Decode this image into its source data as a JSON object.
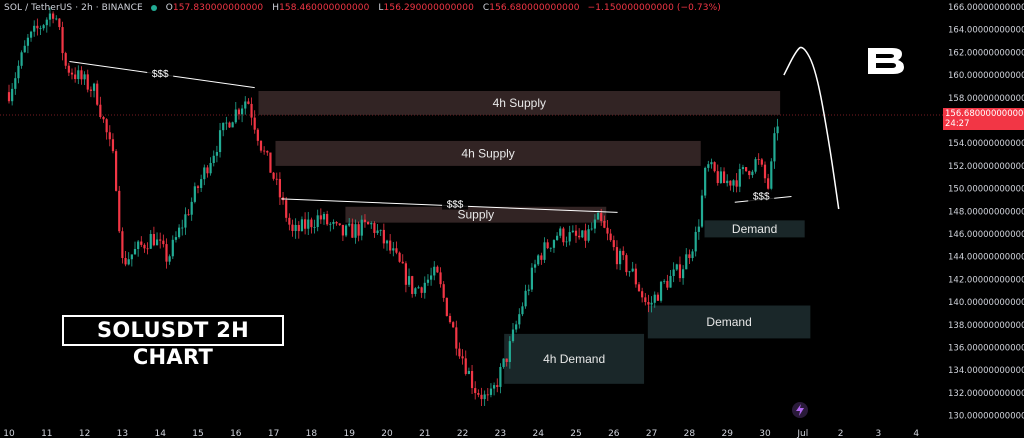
{
  "header": {
    "symbol": "SOL / TetherUS · 2h · BINANCE",
    "o_label": "O",
    "o_value": "157.830000000000",
    "h_label": "H",
    "h_value": "158.460000000000",
    "l_label": "L",
    "l_value": "156.290000000000",
    "c_label": "C",
    "c_value": "156.680000000000",
    "change": "−1.150000000000 (−0.73%)"
  },
  "current_price": {
    "value": "156.680000000000",
    "countdown": "24:27"
  },
  "title_box": "SOLUSDT 2H CHART",
  "colors": {
    "up": "#22ab94",
    "down": "#f23645",
    "supply": "#3b2a2a",
    "demand": "#1d2b2e",
    "background": "#000000"
  },
  "chart_data": {
    "type": "candlestick",
    "y_axis": {
      "ylim": [
        129.5,
        166.5
      ],
      "ticks": [
        166,
        164,
        162,
        160,
        158,
        156,
        154,
        152,
        150,
        148,
        146,
        144,
        142,
        140,
        138,
        136,
        134,
        132,
        130
      ],
      "tick_labels": [
        "166.0000000000000",
        "164.0000000000000",
        "162.0000000000000",
        "160.0000000000000",
        "158.0000000000000",
        "156.0000000000000",
        "154.0000000000000",
        "152.0000000000000",
        "150.0000000000000",
        "148.0000000000000",
        "146.0000000000000",
        "144.0000000000000",
        "142.0000000000000",
        "140.0000000000000",
        "138.0000000000000",
        "136.0000000000000",
        "134.0000000000000",
        "132.0000000000000",
        "130.0000000000000"
      ]
    },
    "x_axis": {
      "ticks": [
        "10",
        "11",
        "12",
        "13",
        "14",
        "15",
        "16",
        "17",
        "18",
        "19",
        "20",
        "21",
        "22",
        "23",
        "24",
        "25",
        "26",
        "27",
        "28",
        "29",
        "30",
        "Jul",
        "2",
        "3",
        "4"
      ]
    },
    "zones": [
      {
        "label": "4h Supply",
        "kind": "supply",
        "y_top": 158.6,
        "y_bottom": 156.5,
        "x_start": 16.6,
        "x_end": 30.4
      },
      {
        "label": "4h Supply",
        "kind": "supply",
        "y_top": 154.2,
        "y_bottom": 152.0,
        "x_start": 17.05,
        "x_end": 28.3
      },
      {
        "label": "Supply",
        "kind": "supply",
        "y_top": 148.4,
        "y_bottom": 147.0,
        "x_start": 18.9,
        "x_end": 25.8
      },
      {
        "label": "Demand",
        "kind": "demand",
        "y_top": 147.2,
        "y_bottom": 145.7,
        "x_start": 28.4,
        "x_end": 31.05
      },
      {
        "label": "Demand",
        "kind": "demand",
        "y_top": 139.7,
        "y_bottom": 136.8,
        "x_start": 26.9,
        "x_end": 31.2
      },
      {
        "label": "4h Demand",
        "kind": "demand",
        "y_top": 137.2,
        "y_bottom": 132.8,
        "x_start": 23.1,
        "x_end": 26.8
      }
    ],
    "liquidity_lines": [
      {
        "label": "$$$",
        "x1": 11.6,
        "y1": 161.2,
        "x2": 16.5,
        "y2": 158.9,
        "label_x": 14.0,
        "label_y": 160.0
      },
      {
        "label": "$$$",
        "x1": 17.2,
        "y1": 149.1,
        "x2": 26.1,
        "y2": 147.9,
        "label_x": 21.8,
        "label_y": 148.5
      },
      {
        "label": "$$$",
        "x1": 29.2,
        "y1": 148.8,
        "x2": 30.7,
        "y2": 149.3,
        "label_x": 29.9,
        "label_y": 149.2
      }
    ],
    "projection": {
      "points": [
        [
          30.5,
          160.0
        ],
        [
          30.8,
          162.0
        ],
        [
          31.0,
          162.7
        ],
        [
          31.35,
          160.5
        ],
        [
          31.7,
          154.0
        ],
        [
          31.95,
          148.2
        ]
      ]
    },
    "anchors": [
      {
        "x": 10,
        "p": 158.5
      },
      {
        "x": 10.5,
        "p": 163.0
      },
      {
        "x": 11.2,
        "p": 165.8
      },
      {
        "x": 11.5,
        "p": 160.8
      },
      {
        "x": 12.3,
        "p": 158.5
      },
      {
        "x": 12.8,
        "p": 152.0
      },
      {
        "x": 13.0,
        "p": 143.5
      },
      {
        "x": 13.8,
        "p": 145.8
      },
      {
        "x": 14.2,
        "p": 143.8
      },
      {
        "x": 14.6,
        "p": 147.0
      },
      {
        "x": 15.3,
        "p": 152.5
      },
      {
        "x": 15.8,
        "p": 156.0
      },
      {
        "x": 16.3,
        "p": 158.0
      },
      {
        "x": 16.7,
        "p": 153.5
      },
      {
        "x": 17.0,
        "p": 151.0
      },
      {
        "x": 17.5,
        "p": 146.0
      },
      {
        "x": 18.2,
        "p": 147.5
      },
      {
        "x": 18.8,
        "p": 146.0
      },
      {
        "x": 19.6,
        "p": 146.8
      },
      {
        "x": 20.2,
        "p": 144.0
      },
      {
        "x": 20.7,
        "p": 141.0
      },
      {
        "x": 21.3,
        "p": 142.5
      },
      {
        "x": 21.8,
        "p": 137.0
      },
      {
        "x": 22.3,
        "p": 132.5
      },
      {
        "x": 22.7,
        "p": 131.2
      },
      {
        "x": 23.2,
        "p": 135.5
      },
      {
        "x": 23.6,
        "p": 140.0
      },
      {
        "x": 24.0,
        "p": 144.0
      },
      {
        "x": 24.5,
        "p": 146.0
      },
      {
        "x": 25.2,
        "p": 145.5
      },
      {
        "x": 25.6,
        "p": 147.2
      },
      {
        "x": 26.1,
        "p": 144.0
      },
      {
        "x": 26.5,
        "p": 142.5
      },
      {
        "x": 26.9,
        "p": 139.5
      },
      {
        "x": 27.3,
        "p": 141.5
      },
      {
        "x": 27.8,
        "p": 143.0
      },
      {
        "x": 28.2,
        "p": 146.0
      },
      {
        "x": 28.45,
        "p": 152.0
      },
      {
        "x": 28.9,
        "p": 150.5
      },
      {
        "x": 29.3,
        "p": 151.0
      },
      {
        "x": 29.8,
        "p": 152.5
      },
      {
        "x": 30.1,
        "p": 150.0
      },
      {
        "x": 30.3,
        "p": 155.5
      },
      {
        "x": 30.4,
        "p": 156.68
      }
    ]
  }
}
